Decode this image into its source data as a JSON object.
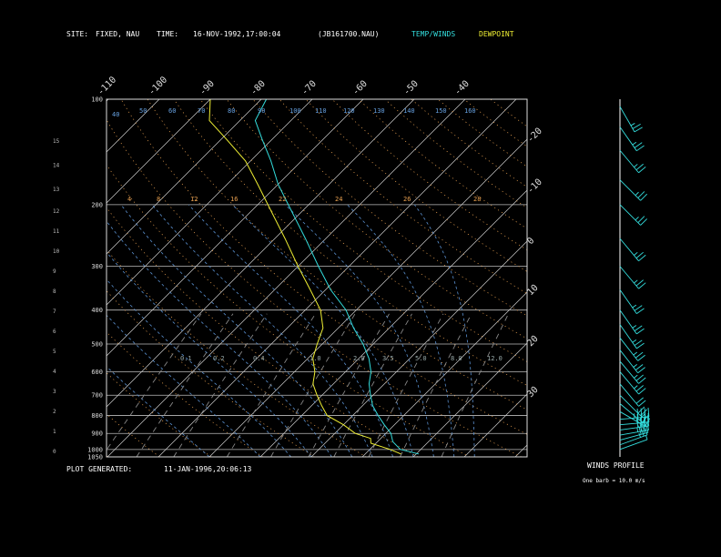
{
  "header": {
    "site_label": "SITE:",
    "site_value": "FIXED, NAU",
    "time_label": "TIME:",
    "time_value": "16-NOV-1992,17:00:04",
    "file_value": "(JB161700.NAU)",
    "legend_temp": "TEMP/WINDS",
    "legend_dew": "DEWPOINT"
  },
  "footer": {
    "generated_label": "PLOT GENERATED:",
    "generated_value": "11-JAN-1996,20:06:13",
    "winds_title": "WINDS PROFILE",
    "winds_note": "One barb = 10.0 m/s"
  },
  "colors": {
    "temp": "#33dddd",
    "dewpoint": "#eeee33",
    "isotherm": "#cccccc",
    "dry_adiabat": "#e8a050",
    "moist_adiabat": "#5a90d0",
    "mixing_ratio": "#888888",
    "wind": "#33dddd"
  },
  "chart_data": {
    "type": "skew-t",
    "pressure_ticks": [
      "100",
      "200",
      "300",
      "400",
      "500",
      "600",
      "700",
      "800",
      "900",
      "1000",
      "1050"
    ],
    "pressure_ticks_values": [
      100,
      200,
      300,
      400,
      500,
      600,
      700,
      800,
      900,
      1000,
      1050
    ],
    "height_ticks": [
      "15",
      "14",
      "13",
      "12",
      "11",
      "10",
      "9",
      "8",
      "7",
      "6",
      "5",
      "4",
      "3",
      "2",
      "1",
      "0"
    ],
    "height_ticks_values": [
      15.5,
      14.3,
      13.1,
      12,
      11,
      10,
      9,
      8,
      7,
      6,
      5,
      4,
      3,
      2,
      1,
      0
    ],
    "isotherm_labels_top": [
      "-110",
      "-100",
      "-90",
      "-80",
      "-70",
      "-60",
      "-50",
      "-40"
    ],
    "isotherm_labels_top_values": [
      -110,
      -100,
      -90,
      -80,
      -70,
      -60,
      -50,
      -40
    ],
    "isotherm_labels_right": [
      "-30",
      "-20",
      "-10",
      "0",
      "10",
      "20",
      "30"
    ],
    "isotherm_labels_right_values": [
      -30,
      -20,
      -10,
      0,
      10,
      20,
      30
    ],
    "dry_adiabat_labels": [
      "4",
      "8",
      "12",
      "16",
      "22",
      "24",
      "26",
      "28"
    ],
    "moist_adiabat_labels": [
      "40",
      "50",
      "60",
      "70",
      "80",
      "90",
      "100",
      "110",
      "120",
      "130",
      "140",
      "150",
      "160"
    ],
    "mixing_ratio_labels": [
      "0.1",
      "0.2",
      "0.4",
      "1.0",
      "2.0",
      "3.5",
      "5.0",
      "8.0",
      "12.0"
    ],
    "ylim_hpa": [
      100,
      1050
    ],
    "xlim_c": [
      -40,
      40
    ],
    "temperature": [
      {
        "p": 1030,
        "t": 20.5
      },
      {
        "p": 1000,
        "t": 16
      },
      {
        "p": 950,
        "t": 13
      },
      {
        "p": 900,
        "t": 11
      },
      {
        "p": 850,
        "t": 8
      },
      {
        "p": 800,
        "t": 5
      },
      {
        "p": 750,
        "t": 2
      },
      {
        "p": 700,
        "t": -0.5
      },
      {
        "p": 650,
        "t": -3
      },
      {
        "p": 600,
        "t": -5
      },
      {
        "p": 550,
        "t": -8
      },
      {
        "p": 500,
        "t": -12
      },
      {
        "p": 450,
        "t": -17
      },
      {
        "p": 400,
        "t": -22
      },
      {
        "p": 350,
        "t": -29
      },
      {
        "p": 300,
        "t": -36
      },
      {
        "p": 250,
        "t": -44
      },
      {
        "p": 200,
        "t": -54
      },
      {
        "p": 175,
        "t": -60
      },
      {
        "p": 150,
        "t": -66
      },
      {
        "p": 130,
        "t": -72
      },
      {
        "p": 115,
        "t": -77
      },
      {
        "p": 100,
        "t": -79
      }
    ],
    "dewpoint": [
      {
        "p": 1030,
        "t": 17
      },
      {
        "p": 1000,
        "t": 14
      },
      {
        "p": 960,
        "t": 9
      },
      {
        "p": 930,
        "t": 8
      },
      {
        "p": 900,
        "t": 4
      },
      {
        "p": 850,
        "t": 0
      },
      {
        "p": 800,
        "t": -5
      },
      {
        "p": 750,
        "t": -8
      },
      {
        "p": 700,
        "t": -11
      },
      {
        "p": 650,
        "t": -14
      },
      {
        "p": 600,
        "t": -16
      },
      {
        "p": 550,
        "t": -19
      },
      {
        "p": 500,
        "t": -21
      },
      {
        "p": 450,
        "t": -23
      },
      {
        "p": 400,
        "t": -27
      },
      {
        "p": 350,
        "t": -33
      },
      {
        "p": 300,
        "t": -40
      },
      {
        "p": 250,
        "t": -48
      },
      {
        "p": 200,
        "t": -58
      },
      {
        "p": 175,
        "t": -64
      },
      {
        "p": 150,
        "t": -71
      },
      {
        "p": 130,
        "t": -79
      },
      {
        "p": 115,
        "t": -86
      },
      {
        "p": 100,
        "t": -90
      }
    ],
    "winds": [
      {
        "p": 1000,
        "speed": 5,
        "dir": 250
      },
      {
        "p": 970,
        "speed": 25,
        "dir": 250
      },
      {
        "p": 940,
        "speed": 30,
        "dir": 255
      },
      {
        "p": 910,
        "speed": 35,
        "dir": 260
      },
      {
        "p": 880,
        "speed": 40,
        "dir": 262
      },
      {
        "p": 850,
        "speed": 42,
        "dir": 265
      },
      {
        "p": 820,
        "speed": 45,
        "dir": 265
      },
      {
        "p": 780,
        "speed": 20,
        "dir": 300
      },
      {
        "p": 740,
        "speed": 20,
        "dir": 310
      },
      {
        "p": 700,
        "speed": 20,
        "dir": 315
      },
      {
        "p": 650,
        "speed": 20,
        "dir": 320
      },
      {
        "p": 600,
        "speed": 25,
        "dir": 320
      },
      {
        "p": 560,
        "speed": 25,
        "dir": 320
      },
      {
        "p": 520,
        "speed": 25,
        "dir": 322
      },
      {
        "p": 480,
        "speed": 25,
        "dir": 322
      },
      {
        "p": 440,
        "speed": 25,
        "dir": 325
      },
      {
        "p": 400,
        "speed": 25,
        "dir": 325
      },
      {
        "p": 350,
        "speed": 25,
        "dir": 325
      },
      {
        "p": 300,
        "speed": 25,
        "dir": 320
      },
      {
        "p": 250,
        "speed": 25,
        "dir": 320
      },
      {
        "p": 200,
        "speed": 25,
        "dir": 315
      },
      {
        "p": 170,
        "speed": 25,
        "dir": 315
      },
      {
        "p": 140,
        "speed": 25,
        "dir": 320
      },
      {
        "p": 120,
        "speed": 25,
        "dir": 325
      },
      {
        "p": 105,
        "speed": 25,
        "dir": 330
      }
    ]
  }
}
